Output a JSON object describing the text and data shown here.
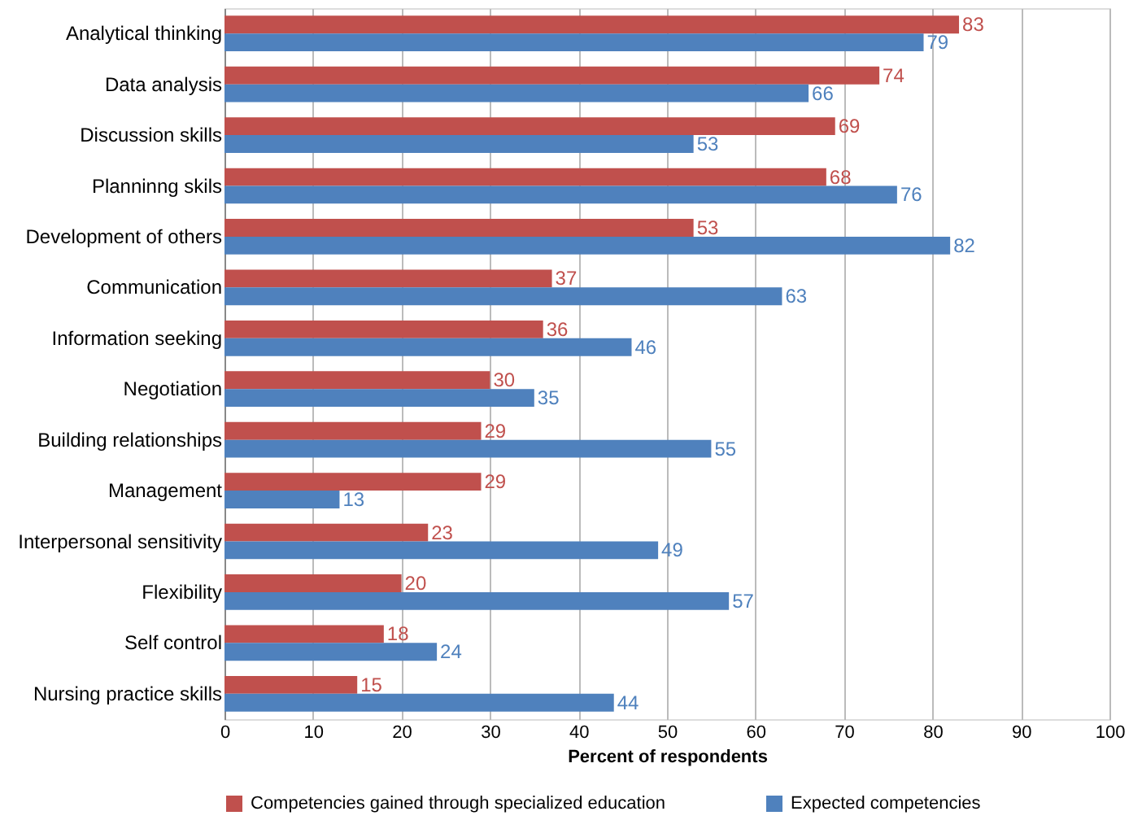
{
  "chart_data": {
    "type": "bar",
    "orientation": "horizontal",
    "xlabel": "Percent of respondents",
    "categories": [
      "Analytical thinking",
      "Data analysis",
      "Discussion skills",
      "Planninng skils",
      "Development of others",
      "Communication",
      "Information seeking",
      "Negotiation",
      "Building relationships",
      "Management",
      "Interpersonal sensitivity",
      "Flexibility",
      "Self control",
      "Nursing practice skills"
    ],
    "series": [
      {
        "name": "Competencies gained through specialized education",
        "color": "#c0504d",
        "values": [
          83,
          74,
          69,
          68,
          53,
          37,
          36,
          30,
          29,
          29,
          23,
          20,
          18,
          15
        ]
      },
      {
        "name": "Expected competencies",
        "color": "#4f81bd",
        "values": [
          79,
          66,
          53,
          76,
          82,
          63,
          46,
          35,
          55,
          13,
          49,
          57,
          24,
          44
        ]
      }
    ],
    "xlim": [
      0,
      100
    ],
    "xticks": [
      0,
      10,
      20,
      30,
      40,
      50,
      60,
      70,
      80,
      90,
      100
    ],
    "grid": "x",
    "legend": "bottom",
    "data_labels": true
  }
}
